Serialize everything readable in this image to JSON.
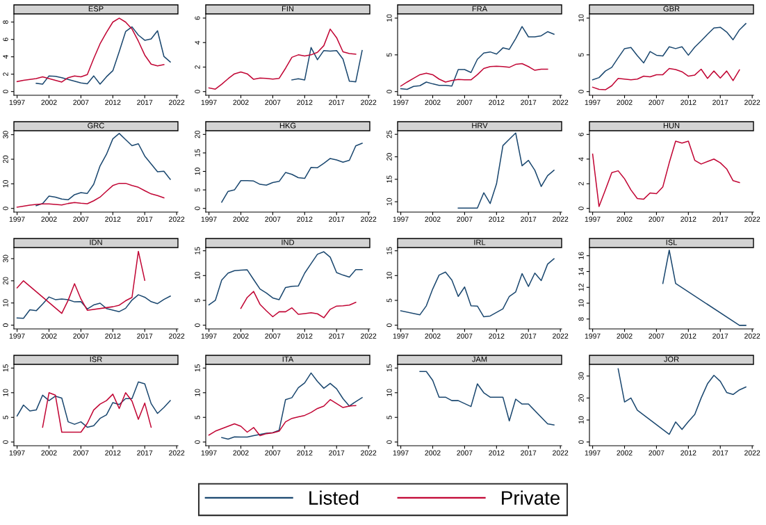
{
  "chart_data": [
    {
      "type": "line",
      "title": "ESP",
      "xlim": [
        1996.5,
        2022.2
      ],
      "xticks": [
        1997,
        2002,
        2007,
        2012,
        2017,
        2022
      ],
      "ylim": [
        -0.43,
        8.94
      ],
      "yticks": [
        0,
        2,
        4,
        6,
        8
      ],
      "legend": "bottom",
      "series": [
        {
          "name": "Listed",
          "color": "#1a476f",
          "x": [
            2000,
            2001,
            2002,
            2003,
            2004,
            2005,
            2006,
            2007,
            2008,
            2009,
            2010,
            2011,
            2012,
            2013,
            2014,
            2015,
            2016,
            2017,
            2018,
            2019,
            2020,
            2021
          ],
          "values": [
            0.95,
            0.85,
            1.8,
            1.75,
            1.6,
            1.4,
            1.2,
            1.0,
            0.9,
            1.8,
            0.85,
            1.7,
            2.4,
            4.6,
            6.9,
            7.45,
            6.5,
            5.9,
            6.05,
            7.0,
            4.05,
            3.4
          ]
        },
        {
          "name": "Private",
          "color": "#c10534",
          "x": [
            1997,
            1998,
            1999,
            2000,
            2001,
            2002,
            2003,
            2004,
            2005,
            2006,
            2007,
            2008,
            2009,
            2010,
            2011,
            2012,
            2013,
            2014,
            2015,
            2016,
            2017,
            2018,
            2019,
            2020
          ],
          "values": [
            1.15,
            1.3,
            1.4,
            1.5,
            1.7,
            1.5,
            1.3,
            1.1,
            1.6,
            1.8,
            1.7,
            1.95,
            3.8,
            5.5,
            6.8,
            8.0,
            8.45,
            8.0,
            7.2,
            5.8,
            4.2,
            3.15,
            2.95,
            3.1
          ]
        }
      ]
    },
    {
      "type": "line",
      "title": "FIN",
      "xlim": [
        1996.5,
        2022.2
      ],
      "xticks": [
        1997,
        2002,
        2007,
        2012,
        2017,
        2022
      ],
      "ylim": [
        -0.3,
        6.34
      ],
      "yticks": [
        0,
        2,
        4,
        6
      ],
      "legend": "bottom",
      "series": [
        {
          "name": "Listed",
          "color": "#1a476f",
          "x": [
            2010,
            2011,
            2012,
            2013,
            2014,
            2015,
            2016,
            2017,
            2018,
            2019,
            2020,
            2021
          ],
          "values": [
            0.95,
            1.05,
            0.95,
            3.6,
            2.6,
            3.35,
            3.3,
            3.35,
            2.65,
            0.85,
            0.8,
            3.35
          ]
        },
        {
          "name": "Private",
          "color": "#c10534",
          "x": [
            1997,
            1998,
            1999,
            2000,
            2001,
            2002,
            2003,
            2004,
            2005,
            2006,
            2007,
            2008,
            2009,
            2010,
            2011,
            2012,
            2013,
            2014,
            2015,
            2016,
            2017,
            2018,
            2019,
            2020
          ],
          "values": [
            0.3,
            0.2,
            0.6,
            1.05,
            1.45,
            1.6,
            1.45,
            1.0,
            1.1,
            1.08,
            1.02,
            1.08,
            1.9,
            2.8,
            3.0,
            2.9,
            3.0,
            3.2,
            3.75,
            5.1,
            4.4,
            3.25,
            3.1,
            3.05
          ]
        }
      ]
    },
    {
      "type": "line",
      "title": "FRA",
      "xlim": [
        1996.5,
        2022.2
      ],
      "xticks": [
        1997,
        2002,
        2007,
        2012,
        2017,
        2022
      ],
      "ylim": [
        -0.5,
        10.57
      ],
      "yticks": [
        0,
        5,
        10
      ],
      "legend": "bottom",
      "series": [
        {
          "name": "Listed",
          "color": "#1a476f",
          "x": [
            1997,
            1998,
            1999,
            2000,
            2001,
            2002,
            2003,
            2004,
            2005,
            2006,
            2007,
            2008,
            2009,
            2010,
            2011,
            2012,
            2013,
            2014,
            2015,
            2016,
            2017,
            2018,
            2019,
            2020,
            2021
          ],
          "values": [
            0.4,
            0.3,
            0.7,
            0.8,
            1.3,
            1.05,
            0.85,
            0.85,
            0.75,
            3.0,
            3.0,
            2.6,
            4.4,
            5.25,
            5.4,
            5.1,
            5.95,
            5.75,
            7.2,
            8.85,
            7.45,
            7.45,
            7.6,
            8.15,
            7.8
          ]
        },
        {
          "name": "Private",
          "color": "#c10534",
          "x": [
            1997,
            1998,
            1999,
            2000,
            2001,
            2002,
            2003,
            2004,
            2005,
            2006,
            2007,
            2008,
            2009,
            2010,
            2011,
            2012,
            2013,
            2014,
            2015,
            2016,
            2017,
            2018,
            2019,
            2020
          ],
          "values": [
            0.75,
            1.3,
            1.8,
            2.3,
            2.5,
            2.3,
            1.7,
            1.3,
            1.5,
            1.65,
            1.6,
            1.6,
            2.3,
            3.15,
            3.4,
            3.45,
            3.4,
            3.3,
            3.7,
            3.8,
            3.4,
            2.9,
            3.05,
            3.05
          ]
        }
      ]
    },
    {
      "type": "line",
      "title": "GBR",
      "xlim": [
        1996.5,
        2022.2
      ],
      "xticks": [
        1997,
        2002,
        2007,
        2012,
        2017,
        2022
      ],
      "ylim": [
        -0.5,
        10.57
      ],
      "yticks": [
        0,
        5,
        10
      ],
      "legend": "bottom",
      "series": [
        {
          "name": "Listed",
          "color": "#1a476f",
          "x": [
            1997,
            1998,
            1999,
            2000,
            2001,
            2002,
            2003,
            2004,
            2005,
            2006,
            2007,
            2008,
            2009,
            2010,
            2011,
            2012,
            2013,
            2014,
            2015,
            2016,
            2017,
            2018,
            2019,
            2020,
            2021
          ],
          "values": [
            1.6,
            1.9,
            2.8,
            3.3,
            4.6,
            5.85,
            6.0,
            4.9,
            3.9,
            5.45,
            4.95,
            4.85,
            6.1,
            5.85,
            6.1,
            4.95,
            6.05,
            6.9,
            7.8,
            8.65,
            8.75,
            8.1,
            7.05,
            8.4,
            9.25
          ]
        },
        {
          "name": "Private",
          "color": "#c10534",
          "x": [
            1997,
            1998,
            1999,
            2000,
            2001,
            2002,
            2003,
            2004,
            2005,
            2006,
            2007,
            2008,
            2009,
            2010,
            2011,
            2012,
            2013,
            2014,
            2015,
            2016,
            2017,
            2018,
            2019,
            2020
          ],
          "values": [
            0.6,
            0.3,
            0.25,
            0.8,
            1.8,
            1.7,
            1.6,
            1.7,
            2.1,
            2.0,
            2.3,
            2.3,
            3.15,
            3.0,
            2.7,
            2.1,
            2.25,
            3.05,
            1.8,
            2.8,
            1.85,
            2.8,
            1.5,
            2.95
          ]
        }
      ]
    },
    {
      "type": "line",
      "title": "GRC",
      "xlim": [
        1996.5,
        2022.2
      ],
      "xticks": [
        1997,
        2002,
        2007,
        2012,
        2017,
        2022
      ],
      "ylim": [
        -1.5,
        31.6
      ],
      "yticks": [
        0,
        10,
        20,
        30
      ],
      "legend": "bottom",
      "series": [
        {
          "name": "Listed",
          "color": "#1a476f",
          "x": [
            2000,
            2001,
            2002,
            2003,
            2004,
            2005,
            2006,
            2007,
            2008,
            2009,
            2010,
            2011,
            2012,
            2013,
            2014,
            2015,
            2016,
            2017,
            2018,
            2019,
            2020,
            2021
          ],
          "values": [
            1.1,
            2.0,
            5.0,
            4.6,
            3.8,
            3.5,
            5.6,
            6.4,
            6.1,
            9.8,
            17.3,
            22.0,
            28.3,
            30.5,
            28.0,
            25.5,
            26.3,
            21.3,
            18.1,
            14.9,
            15.1,
            11.8
          ]
        },
        {
          "name": "Private",
          "color": "#c10534",
          "x": [
            1997,
            1998,
            1999,
            2000,
            2001,
            2002,
            2003,
            2004,
            2005,
            2006,
            2007,
            2008,
            2009,
            2010,
            2011,
            2012,
            2013,
            2014,
            2015,
            2016,
            2017,
            2018,
            2019,
            2020
          ],
          "values": [
            0.5,
            0.9,
            1.3,
            1.6,
            1.8,
            1.8,
            1.6,
            1.4,
            2.0,
            2.4,
            2.1,
            1.9,
            3.1,
            4.6,
            7.0,
            9.3,
            10.2,
            10.2,
            9.3,
            8.6,
            7.2,
            5.9,
            5.2,
            4.3
          ]
        }
      ]
    },
    {
      "type": "line",
      "title": "HKG",
      "xlim": [
        1996.5,
        2022.2
      ],
      "xticks": [
        1997,
        2002,
        2007,
        2012,
        2017,
        2022
      ],
      "ylim": [
        -1,
        21
      ],
      "yticks": [
        0,
        5,
        10,
        15,
        20
      ],
      "legend": "bottom",
      "series": [
        {
          "name": "Listed",
          "color": "#1a476f",
          "x": [
            1999,
            2000,
            2001,
            2002,
            2003,
            2004,
            2005,
            2006,
            2007,
            2008,
            2009,
            2010,
            2011,
            2012,
            2013,
            2014,
            2015,
            2016,
            2017,
            2018,
            2019,
            2020,
            2021
          ],
          "values": [
            1.7,
            4.6,
            5.0,
            7.5,
            7.5,
            7.4,
            6.5,
            6.3,
            7.0,
            7.3,
            9.7,
            9.2,
            8.3,
            8.1,
            11.1,
            11.0,
            12.2,
            13.5,
            13.1,
            12.5,
            13.0,
            16.9,
            17.6
          ]
        }
      ]
    },
    {
      "type": "line",
      "title": "HRV",
      "xlim": [
        1996.5,
        2022.2
      ],
      "xticks": [
        1997,
        2002,
        2007,
        2012,
        2017,
        2022
      ],
      "ylim": [
        7.7,
        25.8
      ],
      "yticks": [
        10,
        15,
        20,
        25
      ],
      "legend": "bottom",
      "series": [
        {
          "name": "Listed",
          "color": "#1a476f",
          "x": [
            2006,
            2007,
            2008,
            2009,
            2010,
            2011,
            2012,
            2013,
            2014,
            2015,
            2016,
            2017,
            2018,
            2019,
            2020,
            2021
          ],
          "values": [
            8.6,
            8.6,
            8.6,
            8.6,
            12.0,
            9.6,
            14.0,
            22.5,
            23.9,
            25.3,
            18.0,
            19.2,
            17.0,
            13.4,
            15.8,
            17.0
          ]
        }
      ]
    },
    {
      "type": "line",
      "title": "HUN",
      "xlim": [
        1996.5,
        2022.2
      ],
      "xticks": [
        1997,
        2002,
        2007,
        2012,
        2017,
        2022
      ],
      "ylim": [
        -0.3,
        6.3
      ],
      "yticks": [
        0,
        2,
        4,
        6
      ],
      "legend": "bottom",
      "series": [
        {
          "name": "Private",
          "color": "#c10534",
          "x": [
            1997,
            1998,
            1999,
            2000,
            2001,
            2002,
            2003,
            2004,
            2005,
            2006,
            2007,
            2008,
            2009,
            2010,
            2011,
            2012,
            2013,
            2014,
            2015,
            2016,
            2017,
            2018,
            2019,
            2020
          ],
          "values": [
            4.4,
            0.15,
            1.5,
            2.9,
            3.05,
            2.4,
            1.5,
            0.8,
            0.75,
            1.25,
            1.2,
            1.75,
            3.7,
            5.45,
            5.3,
            5.45,
            3.9,
            3.6,
            3.8,
            4.0,
            3.7,
            3.2,
            2.25,
            2.1
          ]
        }
      ]
    },
    {
      "type": "line",
      "title": "IDN",
      "xlim": [
        1996.5,
        2022.2
      ],
      "xticks": [
        1997,
        2002,
        2007,
        2012,
        2017,
        2022
      ],
      "ylim": [
        -1.7,
        35
      ],
      "yticks": [
        0,
        10,
        20,
        30
      ],
      "legend": "bottom",
      "series": [
        {
          "name": "Listed",
          "color": "#1a476f",
          "x": [
            1997,
            1998,
            1999,
            2000,
            2001,
            2002,
            2003,
            2004,
            2005,
            2006,
            2007,
            2008,
            2009,
            2010,
            2011,
            2012,
            2013,
            2014,
            2015,
            2016,
            2017,
            2018,
            2019,
            2020,
            2021
          ],
          "values": [
            3.2,
            3.1,
            6.9,
            6.5,
            9.5,
            12.7,
            11.5,
            11.8,
            11.5,
            10.5,
            10.6,
            7.3,
            9.1,
            9.9,
            7.5,
            6.8,
            6.1,
            7.6,
            11.3,
            13.7,
            12.6,
            10.6,
            9.7,
            11.6,
            13.1
          ]
        },
        {
          "name": "Private",
          "color": "#c10534",
          "x": [
            1997,
            1998,
            2004,
            2005,
            2006,
            2007,
            2008,
            2012,
            2013,
            2014,
            2015,
            2016,
            2017
          ],
          "values": [
            16.8,
            20,
            5.3,
            11.2,
            18.7,
            11.8,
            6.7,
            8.3,
            9.0,
            11.0,
            12.5,
            33.3,
            20.2
          ]
        }
      ]
    },
    {
      "type": "line",
      "title": "IND",
      "xlim": [
        1996.5,
        2022.2
      ],
      "xticks": [
        1997,
        2002,
        2007,
        2012,
        2017,
        2022
      ],
      "ylim": [
        -0.75,
        15.65
      ],
      "yticks": [
        0,
        5,
        10,
        15
      ],
      "legend": "bottom",
      "series": [
        {
          "name": "Listed",
          "color": "#1a476f",
          "x": [
            1997,
            1998,
            1999,
            2000,
            2001,
            2002,
            2003,
            2004,
            2005,
            2006,
            2007,
            2008,
            2009,
            2010,
            2011,
            2012,
            2013,
            2014,
            2015,
            2016,
            2017,
            2018,
            2019,
            2020,
            2021
          ],
          "values": [
            4.1,
            5.0,
            9.1,
            10.5,
            11.0,
            11.1,
            11.15,
            9.2,
            7.3,
            6.5,
            5.5,
            5.15,
            7.6,
            7.85,
            7.9,
            10.5,
            12.4,
            14.3,
            14.8,
            13.7,
            10.6,
            10.1,
            9.7,
            11.2,
            11.2
          ]
        },
        {
          "name": "Private",
          "color": "#c10534",
          "x": [
            2002,
            2003,
            2004,
            2005,
            2006,
            2007,
            2008,
            2009,
            2010,
            2011,
            2012,
            2013,
            2014,
            2015,
            2016,
            2017,
            2018,
            2019,
            2020
          ],
          "values": [
            3.4,
            5.6,
            6.8,
            4.2,
            2.9,
            1.7,
            2.7,
            2.7,
            3.5,
            2.2,
            2.35,
            2.5,
            2.3,
            1.5,
            3.2,
            3.85,
            3.9,
            4.05,
            4.6
          ]
        }
      ]
    },
    {
      "type": "line",
      "title": "IRL",
      "xlim": [
        1996.5,
        2022.2
      ],
      "xticks": [
        1997,
        2002,
        2007,
        2012,
        2017,
        2022
      ],
      "ylim": [
        -0.75,
        15.65
      ],
      "yticks": [
        0,
        5,
        10,
        15
      ],
      "legend": "bottom",
      "series": [
        {
          "name": "Listed",
          "color": "#1a476f",
          "x": [
            1997,
            2000,
            2001,
            2002,
            2003,
            2004,
            2005,
            2006,
            2007,
            2008,
            2009,
            2010,
            2011,
            2013,
            2014,
            2015,
            2016,
            2017,
            2018,
            2019,
            2020,
            2021
          ],
          "values": [
            2.9,
            2.1,
            3.9,
            7.3,
            10.1,
            10.7,
            9.1,
            5.8,
            7.7,
            3.9,
            3.85,
            1.7,
            1.85,
            3.3,
            5.8,
            6.7,
            10.4,
            7.8,
            10.5,
            9.0,
            12.3,
            13.4
          ]
        }
      ]
    },
    {
      "type": "line",
      "title": "ISL",
      "xlim": [
        1996.5,
        2022.2
      ],
      "xticks": [
        1997,
        2002,
        2007,
        2012,
        2017,
        2022
      ],
      "ylim": [
        6.75,
        17.03
      ],
      "yticks": [
        8,
        10,
        12,
        14,
        16
      ],
      "legend": "bottom",
      "series": [
        {
          "name": "Listed",
          "color": "#1a476f",
          "x": [
            2008,
            2009,
            2010,
            2020,
            2021
          ],
          "values": [
            12.5,
            16.7,
            12.5,
            7.2,
            7.2
          ]
        }
      ]
    },
    {
      "type": "line",
      "title": "ISR",
      "xlim": [
        1996.5,
        2022.2
      ],
      "xticks": [
        1997,
        2002,
        2007,
        2012,
        2017,
        2022
      ],
      "ylim": [
        -0.75,
        15.75
      ],
      "yticks": [
        0,
        5,
        10,
        15
      ],
      "legend": "bottom",
      "series": [
        {
          "name": "Listed",
          "color": "#1a476f",
          "x": [
            1997,
            1998,
            1999,
            2000,
            2001,
            2002,
            2003,
            2004,
            2005,
            2006,
            2007,
            2008,
            2009,
            2010,
            2011,
            2012,
            2013,
            2014,
            2015,
            2016,
            2017,
            2018,
            2019,
            2020,
            2021
          ],
          "values": [
            5.3,
            7.5,
            6.3,
            6.5,
            9.5,
            8.4,
            9.3,
            8.9,
            4.1,
            3.6,
            4.1,
            3.0,
            3.3,
            4.8,
            5.5,
            8.0,
            7.6,
            8.8,
            8.8,
            12.2,
            11.8,
            7.8,
            5.8,
            7.0,
            8.4
          ]
        },
        {
          "name": "Private",
          "color": "#c10534",
          "x": [
            2001,
            2002,
            2003,
            2004,
            2005,
            2006,
            2007,
            2008,
            2009,
            2010,
            2011,
            2012,
            2013,
            2014,
            2015,
            2016,
            2017,
            2018
          ],
          "values": [
            3.0,
            10.0,
            9.5,
            2.0,
            2.0,
            2.0,
            2.0,
            3.8,
            6.5,
            7.7,
            8.4,
            9.7,
            6.8,
            10.0,
            8.3,
            4.6,
            7.9,
            3.0
          ]
        }
      ]
    },
    {
      "type": "line",
      "title": "ITA",
      "xlim": [
        1996.5,
        2022.2
      ],
      "xticks": [
        1997,
        2002,
        2007,
        2012,
        2017,
        2022
      ],
      "ylim": [
        -0.75,
        15.75
      ],
      "yticks": [
        0,
        5,
        10,
        15
      ],
      "legend": "bottom",
      "series": [
        {
          "name": "Listed",
          "color": "#1a476f",
          "x": [
            1999,
            2000,
            2001,
            2002,
            2003,
            2004,
            2005,
            2006,
            2007,
            2008,
            2009,
            2010,
            2011,
            2012,
            2013,
            2014,
            2015,
            2016,
            2017,
            2018,
            2019,
            2020,
            2021
          ],
          "values": [
            0.9,
            0.6,
            1.05,
            1.0,
            1.0,
            1.3,
            1.55,
            1.8,
            1.9,
            2.4,
            8.6,
            9.0,
            11.0,
            12.0,
            14.0,
            12.3,
            10.9,
            11.9,
            10.8,
            8.8,
            7.3,
            8.2,
            9.0
          ]
        },
        {
          "name": "Private",
          "color": "#c10534",
          "x": [
            1997,
            1998,
            1999,
            2000,
            2001,
            2002,
            2003,
            2004,
            2005,
            2006,
            2007,
            2008,
            2009,
            2010,
            2011,
            2012,
            2013,
            2014,
            2015,
            2016,
            2017,
            2018,
            2019,
            2020
          ],
          "values": [
            1.4,
            2.2,
            2.7,
            3.2,
            3.7,
            3.2,
            2.0,
            2.95,
            1.3,
            1.7,
            1.85,
            2.2,
            4.1,
            4.8,
            5.1,
            5.4,
            6.0,
            6.8,
            7.3,
            8.6,
            7.8,
            7.0,
            7.3,
            7.4
          ]
        }
      ]
    },
    {
      "type": "line",
      "title": "JAM",
      "xlim": [
        1996.5,
        2022.2
      ],
      "xticks": [
        1997,
        2002,
        2007,
        2012,
        2017,
        2022
      ],
      "ylim": [
        -0.75,
        15.75
      ],
      "yticks": [
        0,
        5,
        10,
        15
      ],
      "legend": "bottom",
      "series": [
        {
          "name": "Listed",
          "color": "#1a476f",
          "x": [
            2000,
            2001,
            2002,
            2003,
            2004,
            2005,
            2006,
            2007,
            2008,
            2009,
            2010,
            2011,
            2012,
            2013,
            2014,
            2015,
            2016,
            2017,
            2020,
            2021
          ],
          "values": [
            14.3,
            14.3,
            12.5,
            9.1,
            9.1,
            8.4,
            8.4,
            7.8,
            7.2,
            11.8,
            10.0,
            9.1,
            9.1,
            9.1,
            4.3,
            8.7,
            7.7,
            7.7,
            3.7,
            3.45
          ]
        }
      ]
    },
    {
      "type": "line",
      "title": "JOR",
      "xlim": [
        1996.5,
        2022.2
      ],
      "xticks": [
        1997,
        2002,
        2007,
        2012,
        2017,
        2022
      ],
      "ylim": [
        -1.7,
        35.3
      ],
      "yticks": [
        0,
        10,
        20,
        30
      ],
      "legend": "bottom",
      "series": [
        {
          "name": "Listed",
          "color": "#1a476f",
          "x": [
            2001,
            2002,
            2003,
            2004,
            2009,
            2010,
            2011,
            2012,
            2013,
            2014,
            2015,
            2016,
            2017,
            2018,
            2019,
            2020,
            2021
          ],
          "values": [
            33.3,
            18.2,
            20.0,
            14.5,
            3.5,
            9.1,
            5.7,
            9.3,
            12.5,
            20.0,
            26.5,
            30.3,
            27.6,
            22.5,
            21.6,
            23.7,
            25.0
          ]
        }
      ]
    }
  ]
}
